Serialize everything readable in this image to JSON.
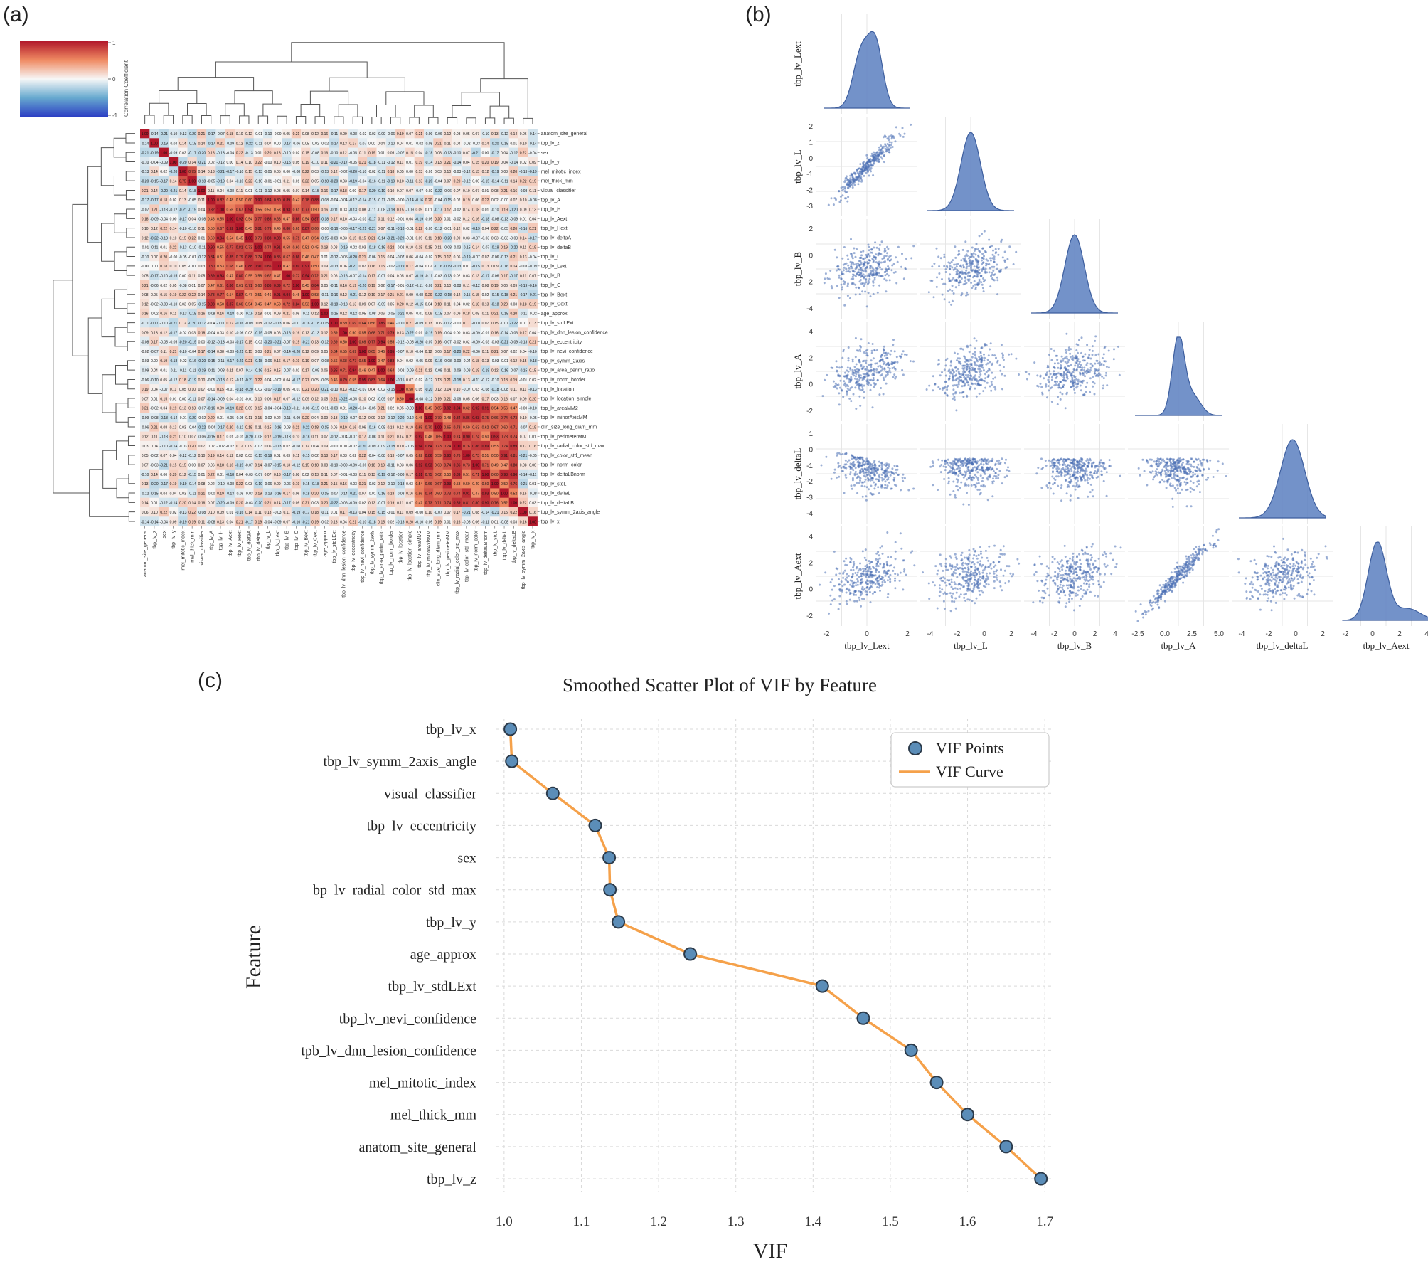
{
  "panels": {
    "a": "(a)",
    "b": "(b)",
    "c": "(c)"
  },
  "heatmap": {
    "colorbar_label": "Correlation Coefficient",
    "colorbar_ticks": [
      "1",
      "0",
      "-1"
    ],
    "features": [
      "anatom_site_general",
      "tbp_lv_z",
      "sex",
      "tbp_lv_y",
      "mel_mitotic_index",
      "mel_thick_mm",
      "visual_classifier",
      "tbp_lv_A",
      "tbp_lv_H",
      "tbp_lv_Aext",
      "tbp_lv_Hext",
      "tbp_lv_deltaA",
      "tbp_lv_deltaB",
      "tbp_lv_L",
      "tbp_lv_Lext",
      "tbp_lv_B",
      "tbp_lv_C",
      "tbp_lv_Bext",
      "tbp_lv_Cext",
      "age_approx",
      "tbp_lv_stdLExt",
      "tbp_lv_dnn_lesion_confidence",
      "tbp_lv_eccentricity",
      "tbp_lv_nevi_confidence",
      "tbp_lv_symm_2axis",
      "tbp_lv_area_perim_ratio",
      "tbp_lv_norm_border",
      "tbp_lv_location",
      "tbp_lv_location_simple",
      "tbp_lv_areaMM2",
      "tbp_lv_minorAxisMM",
      "clin_size_long_diam_mm",
      "tbp_lv_perimeterMM",
      "tbp_lv_radial_color_std_max",
      "tbp_lv_color_std_mean",
      "tbp_lv_norm_color",
      "tbp_lv_deltaLBnorm",
      "tbp_lv_stdL",
      "tbp_lv_deltaL",
      "tbp_lv_deltaLB",
      "tbp_lv_symm_2axis_angle",
      "tbp_lv_x"
    ]
  },
  "pairplot": {
    "variables": [
      "tbp_lv_Lext",
      "tbp_lv_L",
      "tbp_lv_B",
      "tbp_lv_A",
      "tbp_lv_deltaL",
      "tbp_lv_Aext"
    ],
    "x_ticks": [
      [
        "-2",
        "0",
        "2"
      ],
      [
        "-4",
        "-2",
        "0",
        "2"
      ],
      [
        "-4",
        "-2",
        "0",
        "2",
        "4"
      ],
      [
        "-2.5",
        "0.0",
        "2.5",
        "5.0"
      ],
      [
        "-4",
        "-2",
        "0",
        "2"
      ],
      [
        "-2",
        "0",
        "2",
        "4"
      ]
    ],
    "y_ticks": [
      [],
      [
        "2",
        "1",
        "0",
        "-1",
        "-2",
        "-3"
      ],
      [
        "2",
        "0",
        "-2",
        "-4"
      ],
      [
        "4",
        "2",
        "0",
        "-2"
      ],
      [
        "1",
        "0",
        "-1",
        "-2",
        "-3",
        "-4"
      ],
      [
        "4",
        "2",
        "0",
        "-2"
      ]
    ]
  },
  "chart_data": {
    "type": "line",
    "title": "Smoothed Scatter Plot of VIF by Feature",
    "xlabel": "VIF",
    "ylabel": "Feature",
    "xlim": [
      0.99,
      1.71
    ],
    "x_ticks": [
      "1.0",
      "1.1",
      "1.2",
      "1.3",
      "1.4",
      "1.5",
      "1.6",
      "1.7"
    ],
    "legend": {
      "position": "top-right",
      "points": "VIF Points",
      "curve": "VIF Curve"
    },
    "categories": [
      "tbp_lv_x",
      "tbp_lv_symm_2axis_angle",
      "visual_classifier",
      "tbp_lv_eccentricity",
      "sex",
      "bp_lv_radial_color_std_max",
      "tbp_lv_y",
      "age_approx",
      "tbp_lv_stdLExt",
      "tbp_lv_nevi_confidence",
      "tpb_lv_dnn_lesion_confidence",
      "mel_mitotic_index",
      "mel_thick_mm",
      "anatom_site_general",
      "tbp_lv_z"
    ],
    "values": [
      1.008,
      1.01,
      1.063,
      1.118,
      1.136,
      1.137,
      1.148,
      1.241,
      1.412,
      1.465,
      1.527,
      1.56,
      1.6,
      1.65,
      1.695
    ],
    "colors": {
      "points": "#5b8db8",
      "curve": "#f5a14a",
      "point_edge": "#2b3a4a"
    }
  }
}
